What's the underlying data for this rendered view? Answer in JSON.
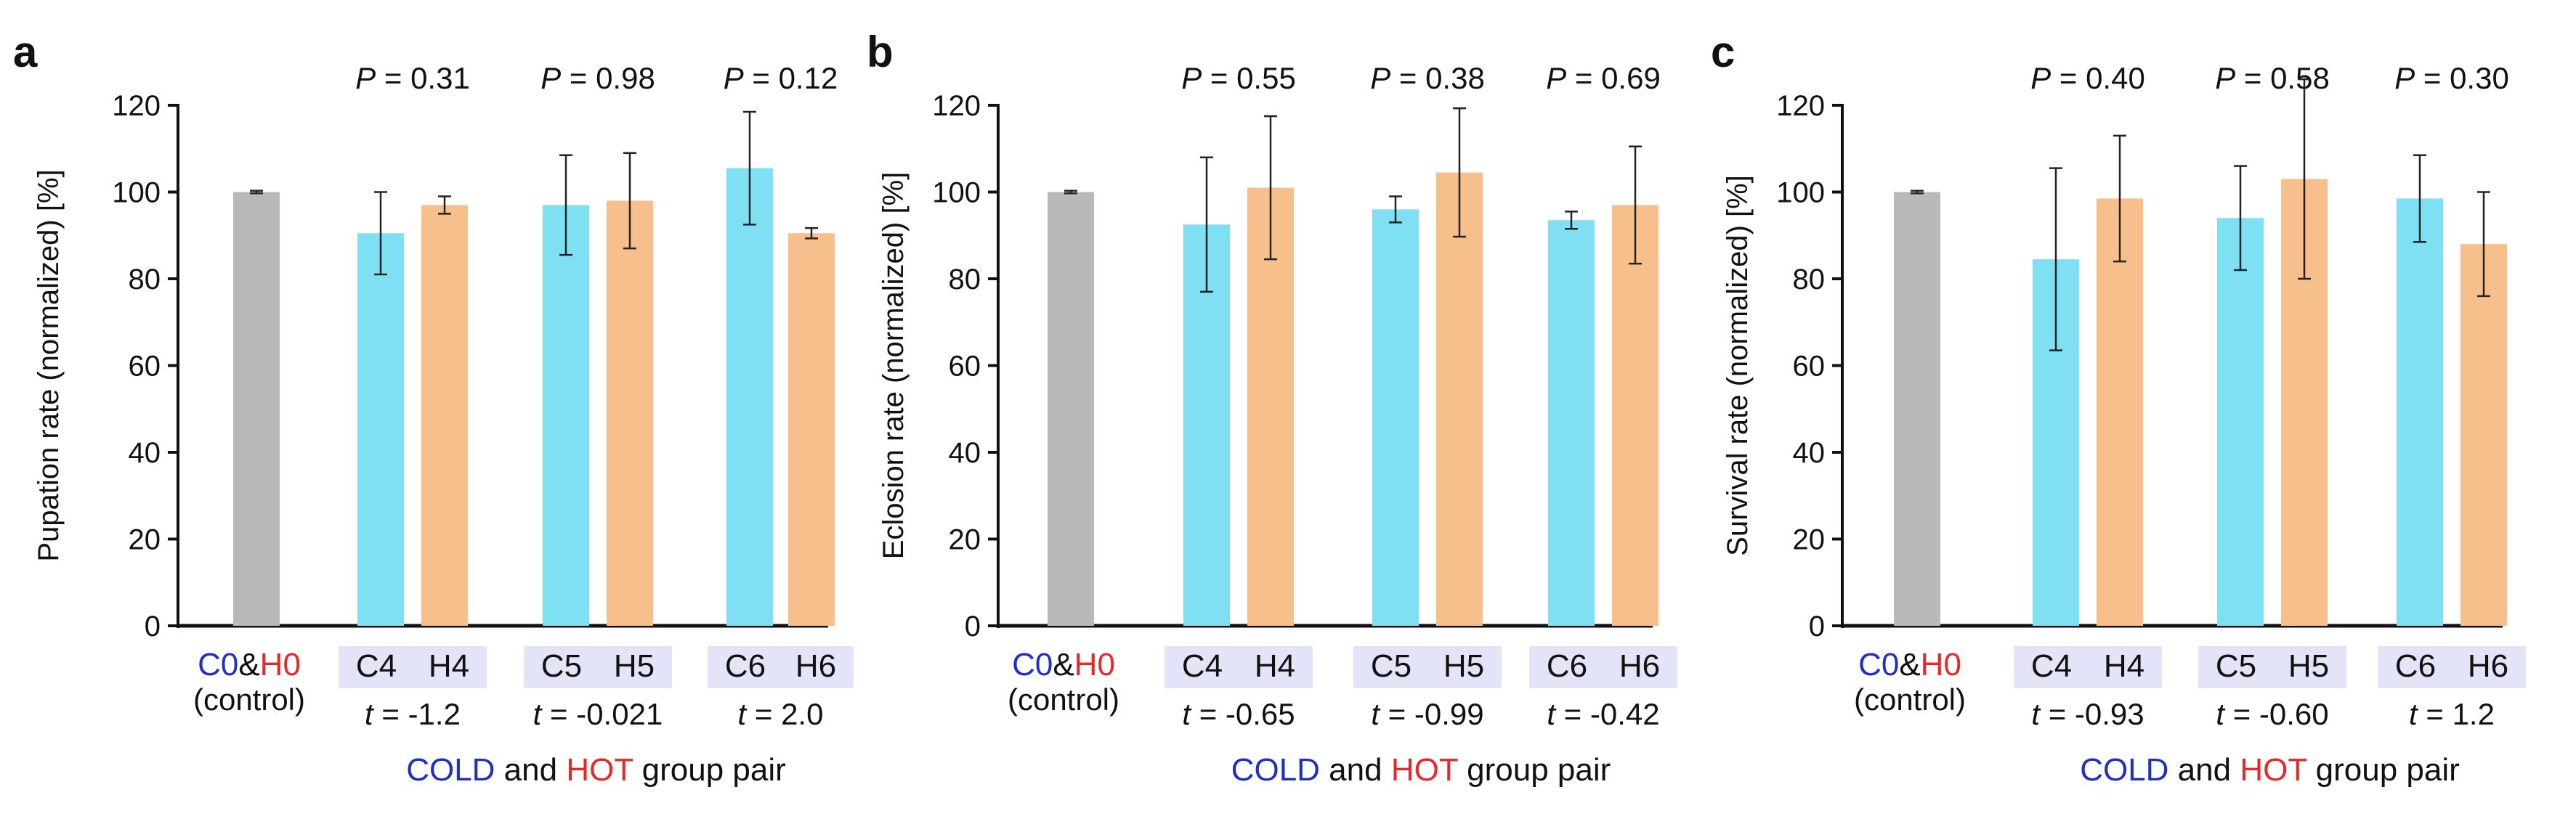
{
  "colors": {
    "control": "#b9b9b9",
    "cold_bar": "#7ee0f2",
    "hot_bar": "#f6bf8b",
    "cold_text": "#1f2fbf",
    "hot_text": "#e32a2a",
    "pair_highlight": "#e4e4f8",
    "axis": "#111111"
  },
  "chart_data": [
    {
      "panel_label": "a",
      "type": "bar",
      "ylabel": "Pupation rate (normalized) [%]",
      "ylim": [
        0,
        120
      ],
      "yticks": [
        0,
        20,
        40,
        60,
        80,
        100,
        120
      ],
      "control": {
        "label_cold": "C0",
        "amp": "&",
        "label_hot": "H0",
        "sublabel": "(control)",
        "value": 100,
        "error": 0.3
      },
      "pairs": [
        {
          "cold": "C4",
          "hot": "H4",
          "cold_value": 90.5,
          "cold_error": 9.5,
          "hot_value": 97.0,
          "hot_error": 2.0,
          "p_prefix": "P",
          "p_value": "= 0.31",
          "t_prefix": "t",
          "t_value": "= -1.2"
        },
        {
          "cold": "C5",
          "hot": "H5",
          "cold_value": 97.0,
          "cold_error": 11.5,
          "hot_value": 98.0,
          "hot_error": 11.0,
          "p_prefix": "P",
          "p_value": "= 0.98",
          "t_prefix": "t",
          "t_value": "= -0.021"
        },
        {
          "cold": "C6",
          "hot": "H6",
          "cold_value": 105.5,
          "cold_error": 13.0,
          "hot_value": 90.5,
          "hot_error": 1.2,
          "p_prefix": "P",
          "p_value": "= 0.12",
          "t_prefix": "t",
          "t_value": "= 2.0"
        }
      ],
      "xlabel": {
        "cold": "COLD",
        "and": "and",
        "hot": "HOT",
        "rest": "group pair"
      }
    },
    {
      "panel_label": "b",
      "type": "bar",
      "ylabel": "Eclosion rate (normalized) [%]",
      "ylim": [
        0,
        120
      ],
      "yticks": [
        0,
        20,
        40,
        60,
        80,
        100,
        120
      ],
      "control": {
        "label_cold": "C0",
        "amp": "&",
        "label_hot": "H0",
        "sublabel": "(control)",
        "value": 100,
        "error": 0.3
      },
      "pairs": [
        {
          "cold": "C4",
          "hot": "H4",
          "cold_value": 92.5,
          "cold_error": 15.5,
          "hot_value": 101.0,
          "hot_error": 16.5,
          "p_prefix": "P",
          "p_value": "= 0.55",
          "t_prefix": "t",
          "t_value": "= -0.65"
        },
        {
          "cold": "C5",
          "hot": "H5",
          "cold_value": 96.0,
          "cold_error": 3.0,
          "hot_value": 104.5,
          "hot_error": 14.8,
          "p_prefix": "P",
          "p_value": "= 0.38",
          "t_prefix": "t",
          "t_value": "= -0.99"
        },
        {
          "cold": "C6",
          "hot": "H6",
          "cold_value": 93.5,
          "cold_error": 2.0,
          "hot_value": 97.0,
          "hot_error": 13.5,
          "p_prefix": "P",
          "p_value": "= 0.69",
          "t_prefix": "t",
          "t_value": "= -0.42"
        }
      ],
      "xlabel": {
        "cold": "COLD",
        "and": "and",
        "hot": "HOT",
        "rest": "group pair"
      }
    },
    {
      "panel_label": "c",
      "type": "bar",
      "ylabel": "Survival rate (normalized) [%]",
      "ylim": [
        0,
        120
      ],
      "yticks": [
        0,
        20,
        40,
        60,
        80,
        100,
        120
      ],
      "control": {
        "label_cold": "C0",
        "amp": "&",
        "label_hot": "H0",
        "sublabel": "(control)",
        "value": 100,
        "error": 0.3
      },
      "pairs": [
        {
          "cold": "C4",
          "hot": "H4",
          "cold_value": 84.5,
          "cold_error": 21.0,
          "hot_value": 98.5,
          "hot_error": 14.5,
          "p_prefix": "P",
          "p_value": "= 0.40",
          "t_prefix": "t",
          "t_value": "= -0.93"
        },
        {
          "cold": "C5",
          "hot": "H5",
          "cold_value": 94.0,
          "cold_error": 12.0,
          "hot_value": 103.0,
          "hot_error": 23.0,
          "p_prefix": "P",
          "p_value": "= 0.58",
          "t_prefix": "t",
          "t_value": "= -0.60"
        },
        {
          "cold": "C6",
          "hot": "H6",
          "cold_value": 98.5,
          "cold_error": 10.0,
          "hot_value": 88.0,
          "hot_error": 12.0,
          "p_prefix": "P",
          "p_value": "= 0.30",
          "t_prefix": "t",
          "t_value": "= 1.2"
        }
      ],
      "xlabel": {
        "cold": "COLD",
        "and": "and",
        "hot": "HOT",
        "rest": "group pair"
      }
    }
  ]
}
